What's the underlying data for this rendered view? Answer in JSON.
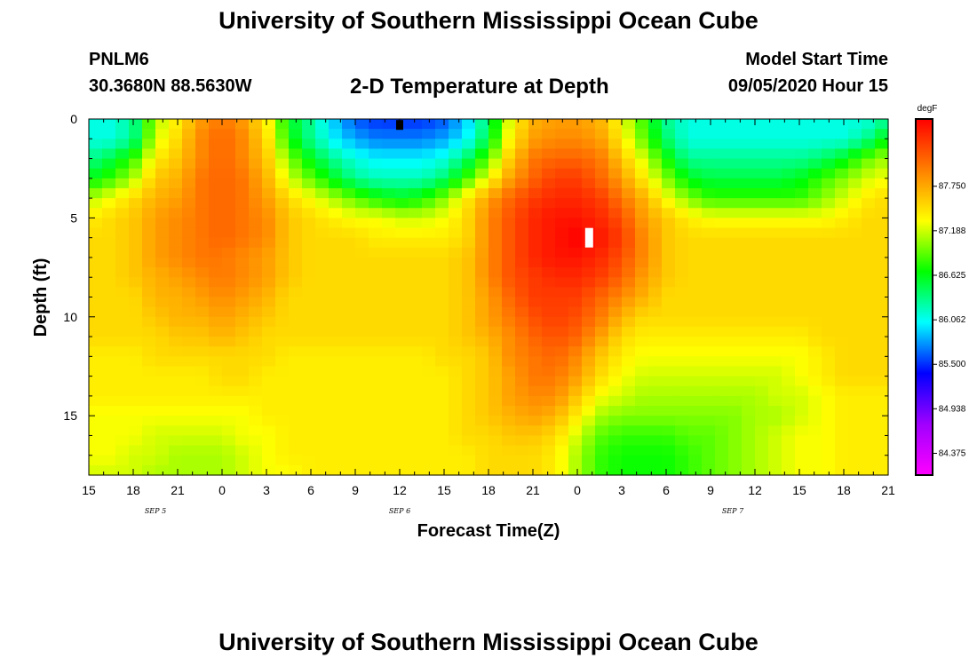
{
  "header": {
    "title": "University of Southern Mississippi Ocean Cube",
    "station_id": "PNLM6",
    "station_coords": "30.3680N 88.5630W",
    "plot_title": "2-D Temperature at Depth",
    "model_start_label": "Model Start Time",
    "model_start_value": "09/05/2020 Hour 15"
  },
  "footer": {
    "title": "University of Southern Mississippi Ocean Cube"
  },
  "chart_data": {
    "type": "heatmap",
    "title": "2-D Temperature at Depth",
    "xlabel": "Forecast Time(Z)",
    "ylabel": "Depth (ft)",
    "x_ticks": [
      "15",
      "18",
      "21",
      "0",
      "3",
      "6",
      "9",
      "12",
      "15",
      "18",
      "21",
      "0",
      "3",
      "6",
      "9",
      "12",
      "15",
      "18",
      "21"
    ],
    "x_start_hour": 15,
    "x_span_hours": 54,
    "date_labels": [
      {
        "text": "SEP 5",
        "hour": 19.5
      },
      {
        "text": "SEP 6",
        "hour": 36
      },
      {
        "text": "SEP 7",
        "hour": 58.5
      }
    ],
    "y_range": [
      0,
      18
    ],
    "y_ticks": [
      0,
      5,
      10,
      15
    ],
    "colorbar": {
      "unit": "degF",
      "range": [
        84.1,
        88.6
      ],
      "labels": [
        "87.750",
        "87.188",
        "86.625",
        "86.062",
        "85.500",
        "84.938",
        "84.375"
      ],
      "stops": [
        "#ff00ff",
        "#a000ff",
        "#0000ff",
        "#00ffff",
        "#00ff00",
        "#ffff00",
        "#ff8000",
        "#ff0000"
      ]
    },
    "colors": {
      "marker_dark": "#000000",
      "marker_light": "#ffffff"
    },
    "markers": [
      {
        "hour": 36,
        "depth": 0.3,
        "style": "dark"
      },
      {
        "hour": 48.8,
        "depth": 6.0,
        "style": "light"
      }
    ],
    "grid_hours": [
      15,
      16.5,
      18,
      19.5,
      21,
      22.5,
      24,
      25.5,
      27,
      28.5,
      30,
      31.5,
      33,
      34.5,
      36,
      37.5,
      39,
      40.5,
      42,
      43.5,
      45,
      46.5,
      48,
      49.5,
      51,
      52.5,
      54,
      55.5,
      57,
      58.5,
      60,
      61.5,
      63,
      64.5,
      66,
      67.5,
      69
    ],
    "grid_depths": [
      0,
      1,
      2,
      3,
      4,
      5,
      6,
      7,
      8,
      9,
      10,
      11,
      12,
      13,
      14,
      15,
      16,
      17,
      18
    ],
    "values": [
      [
        86.1,
        86.1,
        86.3,
        87.1,
        87.4,
        87.8,
        88.0,
        87.8,
        87.4,
        86.6,
        86.3,
        85.9,
        85.6,
        85.5,
        85.5,
        85.5,
        85.6,
        85.9,
        86.4,
        87.3,
        87.7,
        87.8,
        87.8,
        87.7,
        87.3,
        86.8,
        86.3,
        86.1,
        86.1,
        86.1,
        86.1,
        86.1,
        86.1,
        86.1,
        86.1,
        86.1,
        86.3
      ],
      [
        86.1,
        86.1,
        86.3,
        87.2,
        87.5,
        87.9,
        88.1,
        87.9,
        87.5,
        86.7,
        86.3,
        86.0,
        85.8,
        85.7,
        85.7,
        85.7,
        85.8,
        86.0,
        86.5,
        87.4,
        87.8,
        87.9,
        87.9,
        87.8,
        87.4,
        86.9,
        86.4,
        86.1,
        86.1,
        86.1,
        86.1,
        86.1,
        86.1,
        86.1,
        86.1,
        86.3,
        86.7
      ],
      [
        86.3,
        86.5,
        86.8,
        87.4,
        87.6,
        87.9,
        88.1,
        87.9,
        87.6,
        87.0,
        86.6,
        86.3,
        86.1,
        86.0,
        86.0,
        86.0,
        86.1,
        86.4,
        86.9,
        87.6,
        88.0,
        88.1,
        88.1,
        88.0,
        87.6,
        87.2,
        86.7,
        86.3,
        86.3,
        86.3,
        86.3,
        86.3,
        86.3,
        86.4,
        86.6,
        86.9,
        87.1
      ],
      [
        86.6,
        86.8,
        87.1,
        87.6,
        87.7,
        88.0,
        88.1,
        88.0,
        87.7,
        87.2,
        86.9,
        86.6,
        86.3,
        86.2,
        86.2,
        86.2,
        86.4,
        86.8,
        87.3,
        87.8,
        88.1,
        88.3,
        88.3,
        88.1,
        87.8,
        87.4,
        87.0,
        86.6,
        86.5,
        86.5,
        86.5,
        86.5,
        86.6,
        86.8,
        87.0,
        87.2,
        87.3
      ],
      [
        87.1,
        87.3,
        87.5,
        87.7,
        87.8,
        88.0,
        88.1,
        88.0,
        87.8,
        87.5,
        87.3,
        87.1,
        86.9,
        86.7,
        86.6,
        86.7,
        87.0,
        87.4,
        87.8,
        88.1,
        88.3,
        88.4,
        88.4,
        88.3,
        88.0,
        87.7,
        87.3,
        87.0,
        86.8,
        86.8,
        86.8,
        86.8,
        86.8,
        87.0,
        87.2,
        87.4,
        87.5
      ],
      [
        87.4,
        87.5,
        87.6,
        87.8,
        87.9,
        88.0,
        88.1,
        88.0,
        87.9,
        87.6,
        87.5,
        87.4,
        87.3,
        87.3,
        87.2,
        87.2,
        87.3,
        87.5,
        87.9,
        88.2,
        88.4,
        88.5,
        88.5,
        88.4,
        88.2,
        87.8,
        87.6,
        87.4,
        87.3,
        87.3,
        87.3,
        87.3,
        87.3,
        87.3,
        87.4,
        87.5,
        87.5
      ],
      [
        87.5,
        87.5,
        87.6,
        87.8,
        87.9,
        88.0,
        88.1,
        88.0,
        87.9,
        87.6,
        87.5,
        87.5,
        87.5,
        87.4,
        87.4,
        87.4,
        87.4,
        87.5,
        87.9,
        88.2,
        88.4,
        88.5,
        88.6,
        88.5,
        88.3,
        87.9,
        87.6,
        87.5,
        87.5,
        87.5,
        87.5,
        87.5,
        87.5,
        87.5,
        87.5,
        87.5,
        87.5
      ],
      [
        87.5,
        87.5,
        87.6,
        87.8,
        87.9,
        88.0,
        88.0,
        87.9,
        87.8,
        87.6,
        87.5,
        87.5,
        87.5,
        87.5,
        87.5,
        87.5,
        87.5,
        87.6,
        87.9,
        88.2,
        88.4,
        88.5,
        88.5,
        88.4,
        88.2,
        87.9,
        87.6,
        87.5,
        87.5,
        87.5,
        87.5,
        87.5,
        87.5,
        87.5,
        87.5,
        87.5,
        87.5
      ],
      [
        87.5,
        87.5,
        87.6,
        87.7,
        87.8,
        87.9,
        88.0,
        87.9,
        87.8,
        87.6,
        87.5,
        87.5,
        87.5,
        87.5,
        87.5,
        87.5,
        87.5,
        87.6,
        87.9,
        88.2,
        88.3,
        88.4,
        88.4,
        88.3,
        88.1,
        87.8,
        87.6,
        87.5,
        87.5,
        87.5,
        87.5,
        87.5,
        87.5,
        87.5,
        87.5,
        87.5,
        87.5
      ],
      [
        87.5,
        87.5,
        87.5,
        87.7,
        87.7,
        87.8,
        87.9,
        87.8,
        87.7,
        87.5,
        87.5,
        87.5,
        87.5,
        87.5,
        87.5,
        87.5,
        87.5,
        87.6,
        87.8,
        88.1,
        88.3,
        88.3,
        88.3,
        88.1,
        87.9,
        87.7,
        87.5,
        87.5,
        87.5,
        87.5,
        87.5,
        87.5,
        87.5,
        87.5,
        87.5,
        87.5,
        87.5
      ],
      [
        87.5,
        87.5,
        87.5,
        87.6,
        87.7,
        87.7,
        87.8,
        87.7,
        87.6,
        87.5,
        87.5,
        87.5,
        87.5,
        87.5,
        87.5,
        87.5,
        87.5,
        87.6,
        87.8,
        88.0,
        88.2,
        88.3,
        88.2,
        88.0,
        87.7,
        87.5,
        87.5,
        87.5,
        87.5,
        87.5,
        87.5,
        87.5,
        87.5,
        87.5,
        87.5,
        87.5,
        87.5
      ],
      [
        87.5,
        87.5,
        87.5,
        87.5,
        87.6,
        87.6,
        87.7,
        87.6,
        87.5,
        87.5,
        87.5,
        87.5,
        87.5,
        87.5,
        87.5,
        87.5,
        87.5,
        87.6,
        87.7,
        87.9,
        88.1,
        88.2,
        88.1,
        87.8,
        87.5,
        87.4,
        87.4,
        87.4,
        87.4,
        87.4,
        87.4,
        87.4,
        87.4,
        87.5,
        87.5,
        87.5,
        87.5
      ],
      [
        87.4,
        87.4,
        87.4,
        87.5,
        87.5,
        87.5,
        87.5,
        87.5,
        87.5,
        87.4,
        87.4,
        87.4,
        87.4,
        87.4,
        87.4,
        87.4,
        87.5,
        87.5,
        87.6,
        87.9,
        88.0,
        88.1,
        87.9,
        87.6,
        87.4,
        87.3,
        87.3,
        87.3,
        87.3,
        87.3,
        87.3,
        87.3,
        87.3,
        87.4,
        87.5,
        87.5,
        87.5
      ],
      [
        87.4,
        87.4,
        87.4,
        87.4,
        87.4,
        87.4,
        87.5,
        87.5,
        87.4,
        87.4,
        87.4,
        87.4,
        87.4,
        87.4,
        87.4,
        87.4,
        87.4,
        87.5,
        87.6,
        87.8,
        88.0,
        88.0,
        87.8,
        87.5,
        87.3,
        87.2,
        87.2,
        87.2,
        87.2,
        87.2,
        87.2,
        87.2,
        87.3,
        87.4,
        87.5,
        87.5,
        87.5
      ],
      [
        87.4,
        87.4,
        87.4,
        87.4,
        87.4,
        87.4,
        87.4,
        87.4,
        87.4,
        87.4,
        87.4,
        87.4,
        87.4,
        87.4,
        87.4,
        87.4,
        87.4,
        87.5,
        87.6,
        87.8,
        87.9,
        87.9,
        87.6,
        87.3,
        87.2,
        87.1,
        87.1,
        87.1,
        87.1,
        87.1,
        87.1,
        87.2,
        87.2,
        87.3,
        87.4,
        87.4,
        87.4
      ],
      [
        87.3,
        87.3,
        87.3,
        87.3,
        87.3,
        87.3,
        87.3,
        87.3,
        87.4,
        87.4,
        87.4,
        87.4,
        87.4,
        87.4,
        87.4,
        87.4,
        87.4,
        87.5,
        87.6,
        87.7,
        87.8,
        87.7,
        87.4,
        87.1,
        87.0,
        87.0,
        87.0,
        87.0,
        87.0,
        87.0,
        87.1,
        87.1,
        87.2,
        87.3,
        87.4,
        87.4,
        87.4
      ],
      [
        87.3,
        87.3,
        87.3,
        87.2,
        87.2,
        87.2,
        87.2,
        87.3,
        87.3,
        87.4,
        87.4,
        87.4,
        87.4,
        87.4,
        87.4,
        87.4,
        87.4,
        87.5,
        87.5,
        87.6,
        87.6,
        87.5,
        87.2,
        86.9,
        86.8,
        86.8,
        86.8,
        86.9,
        86.9,
        87.0,
        87.1,
        87.2,
        87.3,
        87.3,
        87.4,
        87.4,
        87.4
      ],
      [
        87.3,
        87.3,
        87.2,
        87.2,
        87.1,
        87.1,
        87.1,
        87.2,
        87.3,
        87.4,
        87.4,
        87.4,
        87.4,
        87.4,
        87.4,
        87.4,
        87.4,
        87.4,
        87.5,
        87.5,
        87.5,
        87.4,
        87.1,
        86.8,
        86.7,
        86.7,
        86.7,
        86.8,
        86.9,
        87.0,
        87.1,
        87.2,
        87.3,
        87.3,
        87.4,
        87.4,
        87.4
      ],
      [
        87.2,
        87.2,
        87.2,
        87.1,
        87.1,
        87.1,
        87.1,
        87.2,
        87.3,
        87.3,
        87.4,
        87.4,
        87.4,
        87.4,
        87.4,
        87.4,
        87.4,
        87.4,
        87.5,
        87.5,
        87.5,
        87.4,
        87.1,
        86.8,
        86.7,
        86.7,
        86.7,
        86.8,
        86.9,
        87.0,
        87.1,
        87.2,
        87.3,
        87.3,
        87.4,
        87.4,
        87.4
      ]
    ]
  }
}
